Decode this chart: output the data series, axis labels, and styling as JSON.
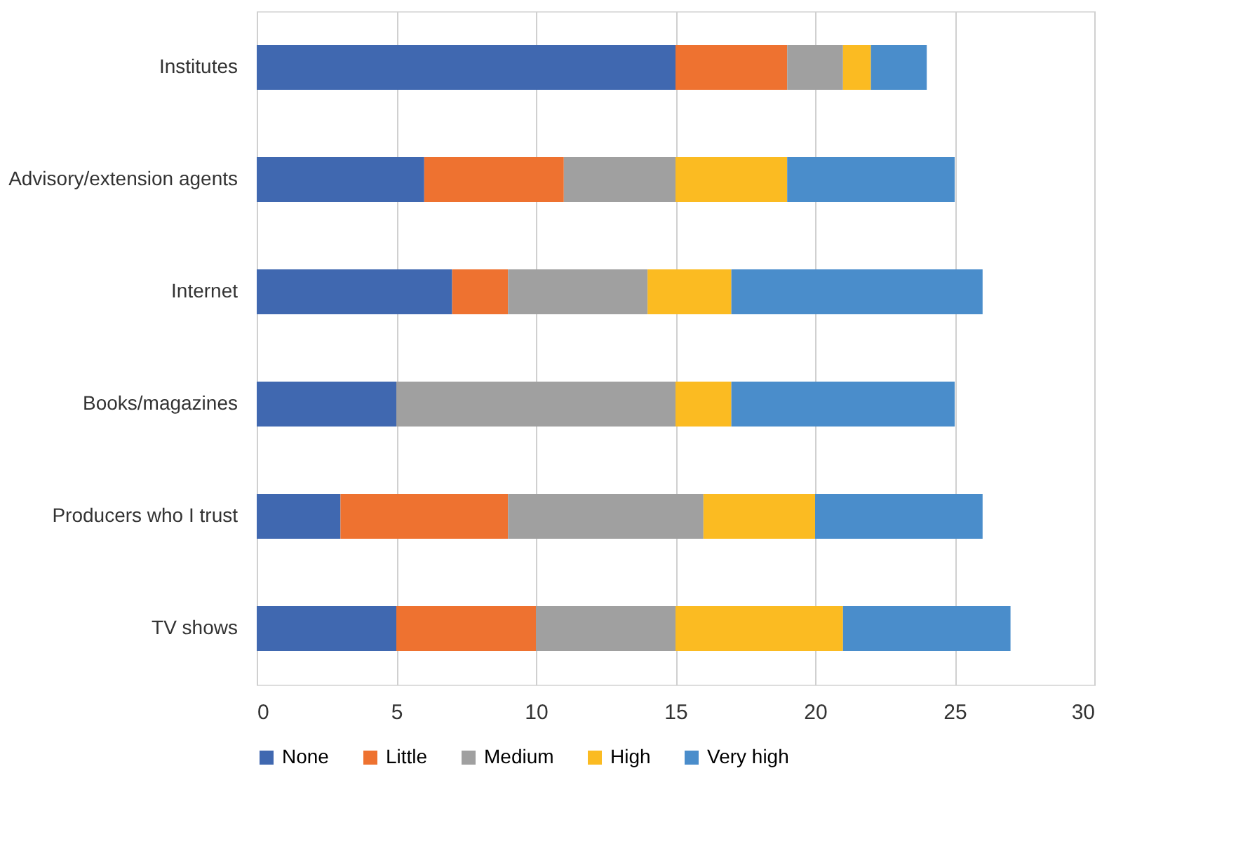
{
  "chart_data": {
    "type": "bar",
    "orientation": "horizontal",
    "stacked": true,
    "categories": [
      "Institutes",
      "Advisory/extension agents",
      "Internet",
      "Books/magazines",
      "Producers who I trust",
      "TV shows"
    ],
    "series": [
      {
        "name": "None",
        "color": "#4068b0",
        "values": [
          15,
          6,
          7,
          5,
          3,
          5
        ]
      },
      {
        "name": "Little",
        "color": "#ee7230",
        "values": [
          4,
          5,
          2,
          0,
          6,
          5
        ]
      },
      {
        "name": "Medium",
        "color": "#a0a0a0",
        "values": [
          2,
          4,
          5,
          10,
          7,
          5
        ]
      },
      {
        "name": "High",
        "color": "#fbbb22",
        "values": [
          1,
          4,
          3,
          2,
          4,
          6
        ]
      },
      {
        "name": "Very high",
        "color": "#4a8dcb",
        "values": [
          2,
          6,
          9,
          8,
          6,
          6
        ]
      }
    ],
    "xlim": [
      0,
      30
    ],
    "xticks": [
      0,
      5,
      10,
      15,
      20,
      25,
      30
    ],
    "grid": "x",
    "legend": "bottom"
  }
}
